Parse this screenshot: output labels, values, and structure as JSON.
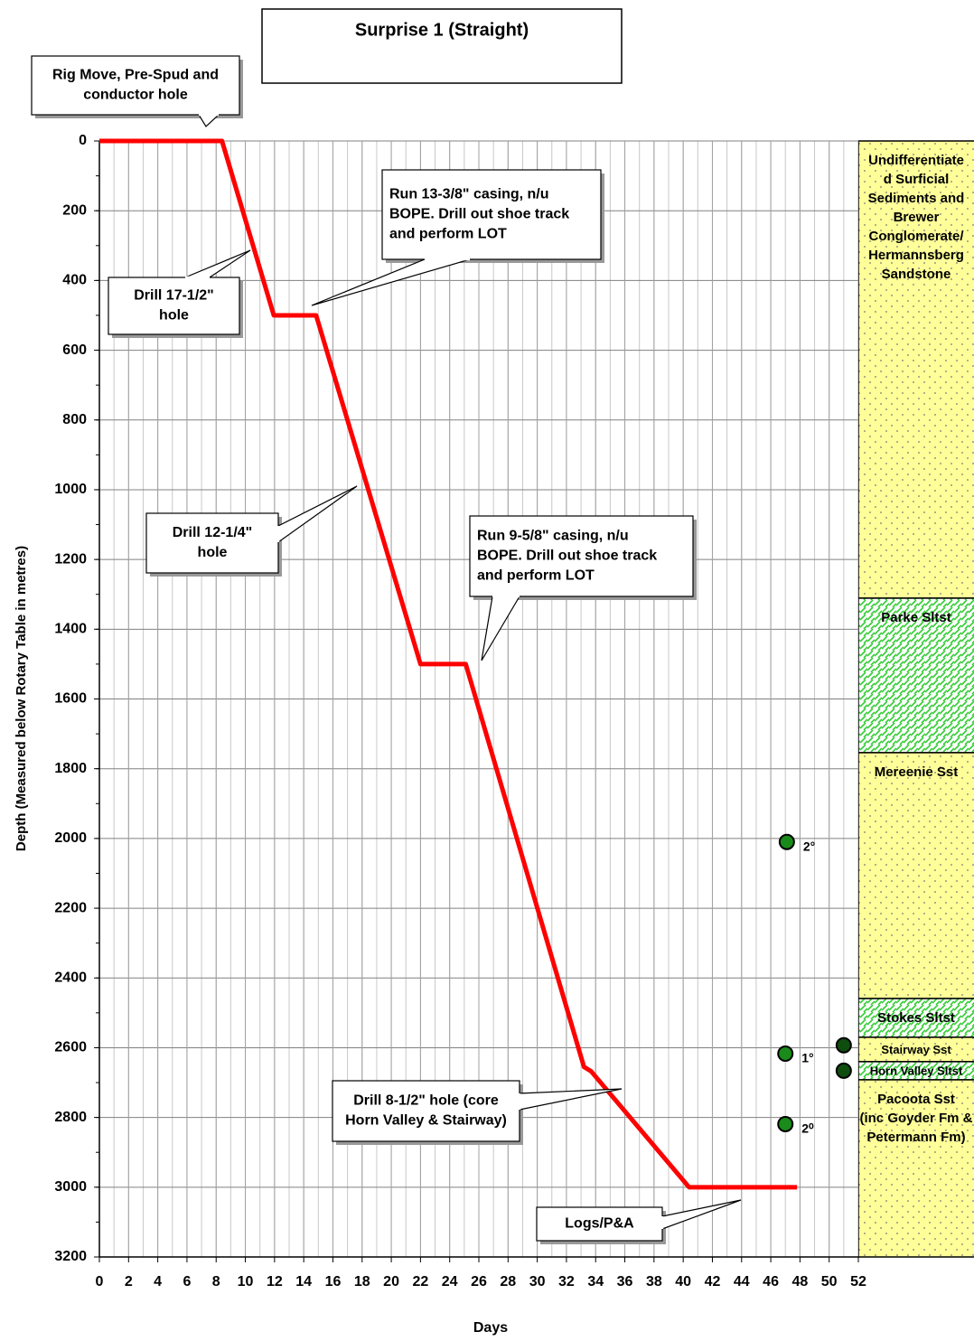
{
  "chart_data": {
    "type": "line",
    "title": "Surprise 1 (Straight)",
    "x_label": "Days",
    "y_label": "Depth (Measured below Rotary Table in metres)",
    "xlim": [
      0,
      52
    ],
    "xticks": [
      0,
      2,
      4,
      6,
      8,
      10,
      12,
      14,
      16,
      18,
      20,
      22,
      24,
      26,
      28,
      30,
      32,
      34,
      36,
      38,
      40,
      42,
      44,
      46,
      48,
      50,
      52
    ],
    "x_minor_grid_step": 1,
    "ylim": [
      3200,
      0
    ],
    "yticks": [
      0,
      200,
      400,
      600,
      800,
      1000,
      1200,
      1400,
      1600,
      1800,
      2000,
      2200,
      2400,
      2600,
      2800,
      3000,
      3200
    ],
    "y_minor_tick_step": 100,
    "grid": true,
    "series": [
      {
        "color": "#ff0000",
        "x": [
          0,
          8.4,
          11.95,
          14.85,
          22.0,
          25.1,
          33.2,
          33.7,
          40.4,
          47.8
        ],
        "values": [
          0,
          0,
          500,
          500,
          1500,
          1500,
          2655,
          2668,
          3000,
          3000
        ]
      }
    ],
    "points": [
      {
        "x": 47.1,
        "value": 2010,
        "label": "2°",
        "color": "#1a8a1a"
      },
      {
        "x": 47.0,
        "value": 2617,
        "label": "1°",
        "color": "#1a8a1a"
      },
      {
        "x": 47.0,
        "value": 2819,
        "label": "2⁰",
        "color": "#1a8a1a"
      },
      {
        "x": 51.0,
        "value": 2593,
        "color": "#0f4d0f"
      },
      {
        "x": 51.0,
        "value": 2666,
        "color": "#0f4d0f"
      }
    ],
    "strata": [
      {
        "name": "Undifferentiated Surficial Sediments and Brewer Conglomerate/ Hermannsberg Sandstone",
        "lines": [
          "Undifferentiate",
          "d Surficial",
          "Sediments and",
          "Brewer",
          "Conglomerate/",
          "Hermannsberg",
          "Sandstone"
        ],
        "top": 0,
        "base": 1311,
        "pattern": "sandstone"
      },
      {
        "lines": [
          "Parke Sltst"
        ],
        "top": 1311,
        "base": 1754,
        "pattern": "siltstone"
      },
      {
        "lines": [
          "Mereenie Sst"
        ],
        "top": 1754,
        "base": 2459,
        "pattern": "sandstone"
      },
      {
        "lines": [
          "Stokes Sltst"
        ],
        "top": 2459,
        "base": 2570,
        "pattern": "siltstone"
      },
      {
        "lines": [
          "Stairway Sst"
        ],
        "top": 2570,
        "base": 2640,
        "pattern": "sandstone"
      },
      {
        "lines": [
          "Horn Valley Sltst"
        ],
        "top": 2640,
        "base": 2692,
        "pattern": "siltstone"
      },
      {
        "lines": [
          "Pacoota Sst",
          "(inc Goyder Fm &",
          "Petermann Fm)"
        ],
        "top": 2692,
        "base": 3200,
        "pattern": "sandstone"
      }
    ],
    "annotations": [
      {
        "lines": [
          "Rig Move, Pre-Spud and",
          "conductor hole"
        ]
      },
      {
        "lines": [
          "Drill 17-1/2\"",
          "hole"
        ]
      },
      {
        "lines": [
          "Run 13-3/8\" casing, n/u",
          "BOPE. Drill out shoe track",
          "and perform LOT"
        ]
      },
      {
        "lines": [
          "Drill 12-1/4\"",
          "hole"
        ]
      },
      {
        "lines": [
          "Run 9-5/8\" casing, n/u",
          "BOPE. Drill out shoe track",
          "and perform LOT"
        ]
      },
      {
        "lines": [
          "Drill 8-1/2\" hole (core",
          "Horn Valley & Stairway)"
        ]
      },
      {
        "lines": [
          "Logs/P&A"
        ]
      }
    ]
  }
}
